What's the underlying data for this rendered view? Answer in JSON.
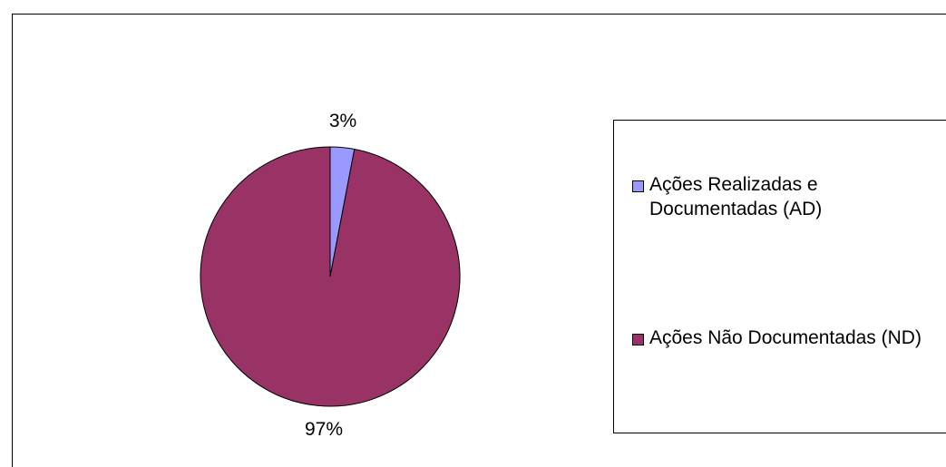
{
  "chart_data": {
    "type": "pie",
    "title": "",
    "slices": [
      {
        "label": "Ações Realizadas e Documentadas (AD)",
        "value": 3,
        "display": "3%",
        "color": "#9999ff"
      },
      {
        "label": "Ações Não Documentadas (ND)",
        "value": 97,
        "display": "97%",
        "color": "#993366"
      }
    ],
    "legend_position": "right"
  }
}
